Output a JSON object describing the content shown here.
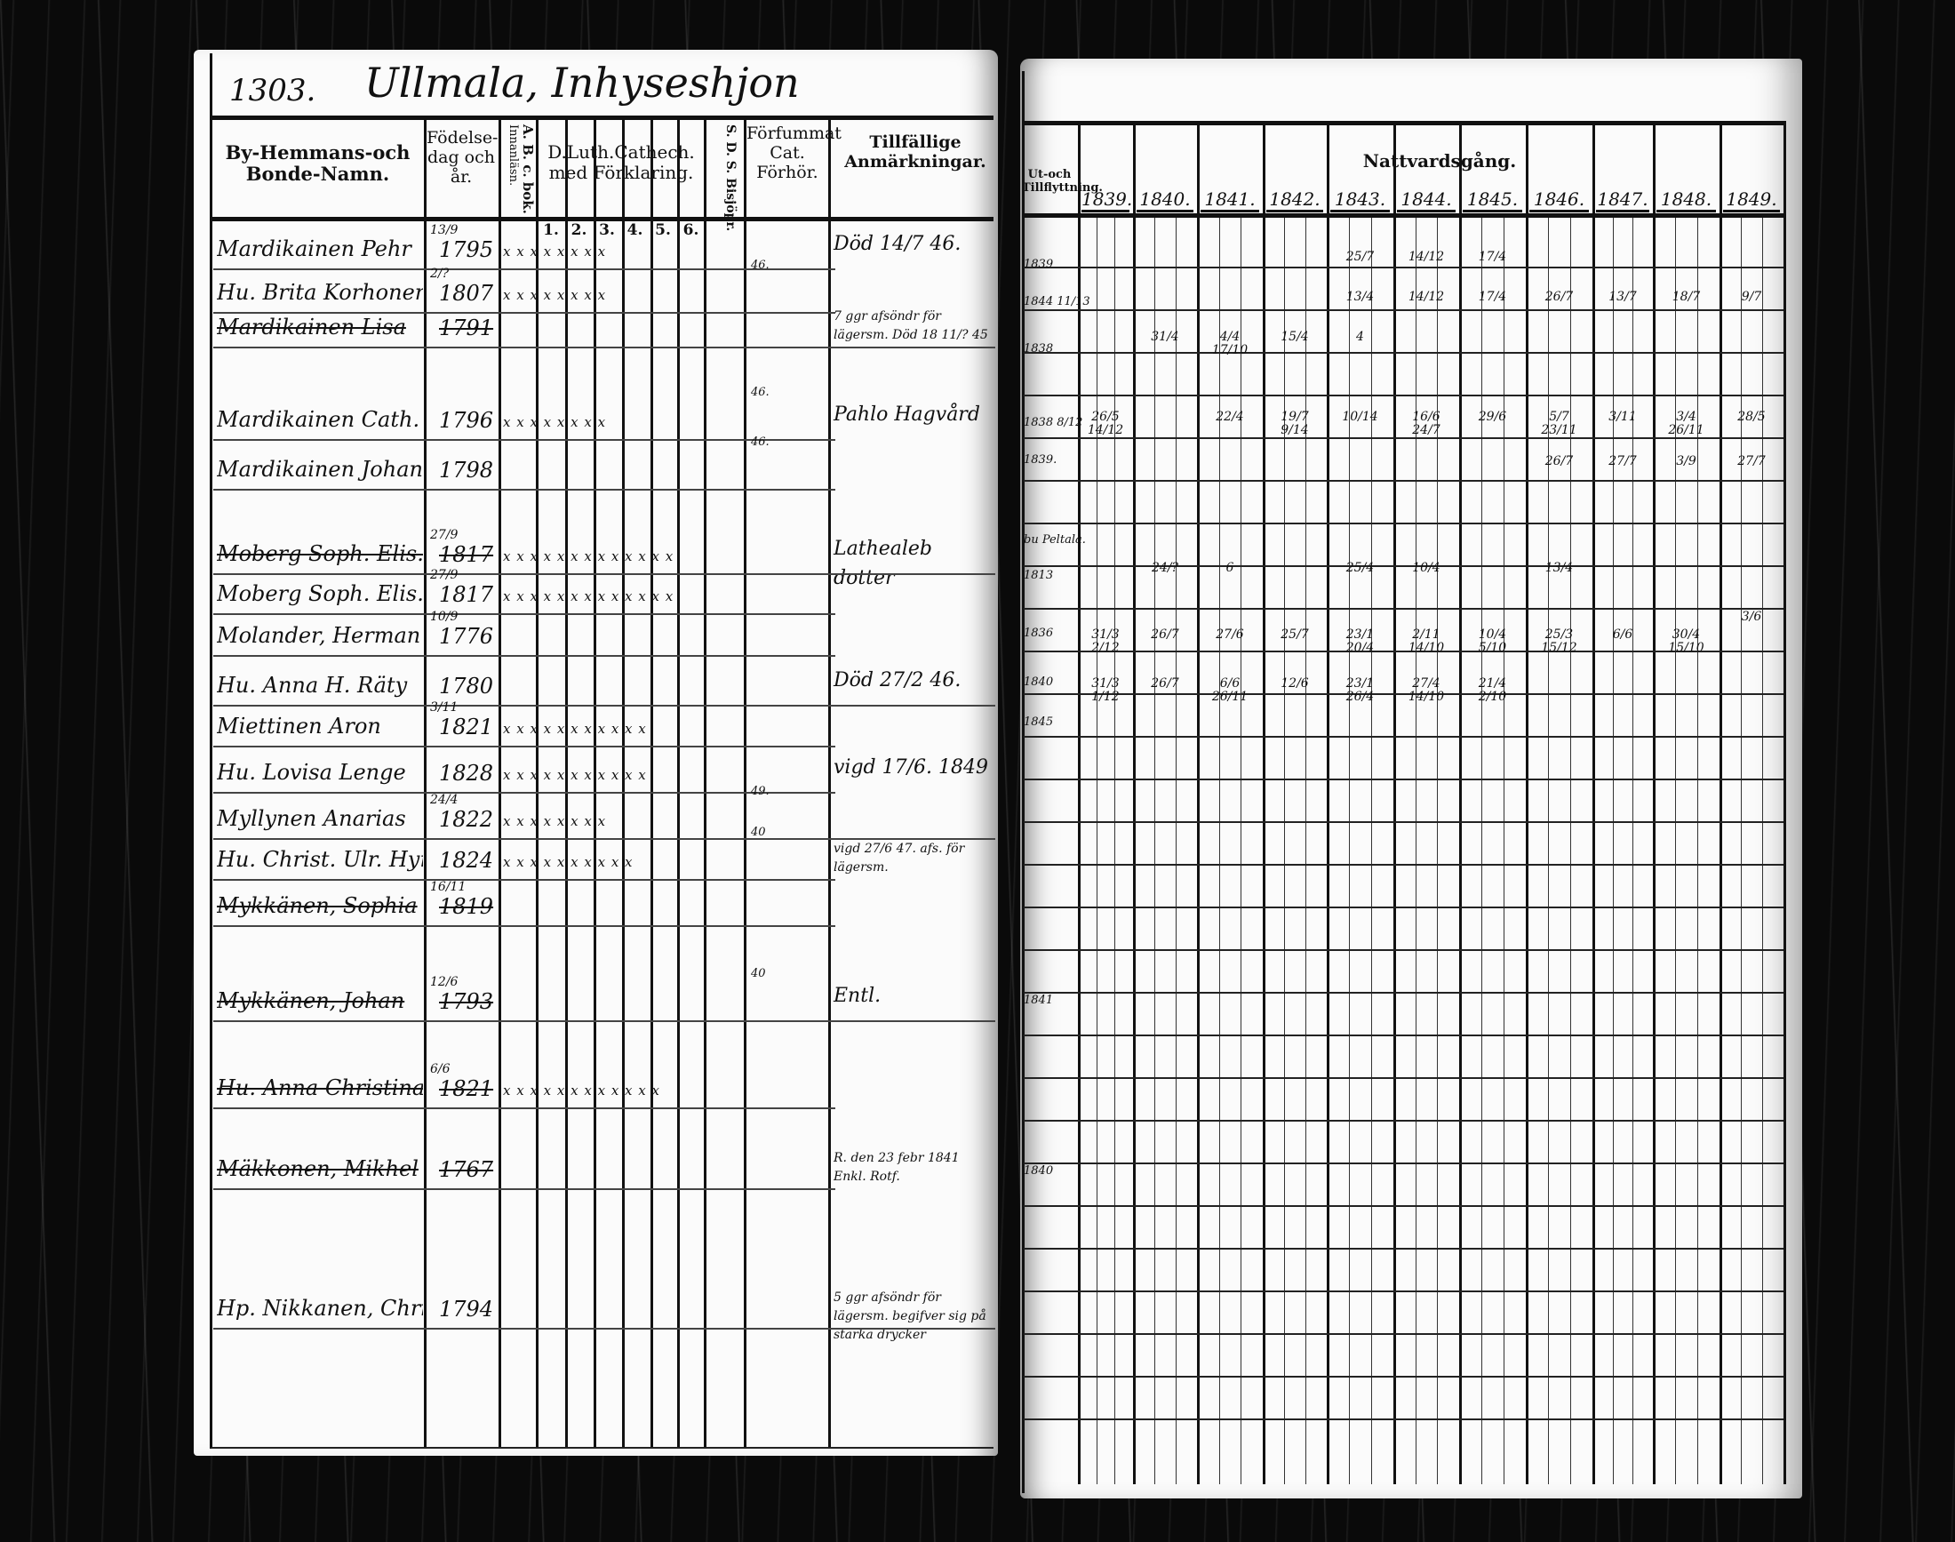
{
  "header": {
    "page_number": "1303.",
    "place_title": "Ullmala, Inhyseshjon"
  },
  "left_columns": {
    "name": "By-Hemmans-och Bonde-Namn.",
    "birth": "Födelse-dag och år.",
    "reading": "Innanläsn.",
    "abc_book": "A. B. c. bok.",
    "catechism": "D.Luth.Cathech. med Förklaring.",
    "catechism_parts": [
      "1.",
      "2.",
      "3.",
      "4.",
      "5.",
      "6."
    ],
    "bible": "S. D. S. Bisjöpr.",
    "missed": "Förfummat Cat. Förhör.",
    "remarks": "Tillfällige Anmärkningar."
  },
  "right_columns": {
    "moving": "Ut-och Tillflyttning.",
    "communion": "Nattvardsgång.",
    "years": [
      "1839.",
      "1840.",
      "1841.",
      "1842.",
      "1843.",
      "1844.",
      "1845.",
      "1846.",
      "1847.",
      "1848.",
      "1849."
    ]
  },
  "persons": [
    {
      "name": "Mardikainen Pehr",
      "birth_day": "13/9",
      "birth_year": "1795",
      "marks": "x x x x x x x x",
      "missed": "",
      "remark": "Död 14/7 46.",
      "struck": false
    },
    {
      "name": "Hu. Brita Korhonen",
      "birth_day": "2/?",
      "birth_year": "1807",
      "marks": "x x x x x x x x",
      "missed": "46.",
      "remark": "",
      "struck": false
    },
    {
      "name": "Mardikainen Lisa",
      "birth_day": "",
      "birth_year": "1791",
      "marks": "",
      "missed": "",
      "remark": "7 ggr afsöndr för lägersm. Död 18 11/? 45",
      "struck": true
    },
    {
      "name": "Mardikainen Cath.",
      "birth_day": "",
      "birth_year": "1796",
      "marks": "x x x x x x x x",
      "missed": "46.",
      "remark": "Pahlo Hagvård",
      "struck": false
    },
    {
      "name": "Mardikainen Johan",
      "birth_day": "",
      "birth_year": "1798",
      "marks": "",
      "missed": "46.",
      "remark": "",
      "struck": false
    },
    {
      "name": "Moberg Soph. Elis.",
      "birth_day": "27/9",
      "birth_year": "1817",
      "marks": "x x x x x x x x x x x x x",
      "missed": "",
      "remark": "Lathealeb dotter",
      "struck": true
    },
    {
      "name": "Moberg Soph. Elis.",
      "birth_day": "27/9",
      "birth_year": "1817",
      "marks": "x x x x x x x x x x x x x",
      "missed": "",
      "remark": "",
      "struck": false
    },
    {
      "name": "Molander, Herman",
      "birth_day": "10/9",
      "birth_year": "1776",
      "marks": "",
      "missed": "",
      "remark": "",
      "struck": false
    },
    {
      "name": "Hu. Anna H. Räty",
      "birth_day": "",
      "birth_year": "1780",
      "marks": "",
      "missed": "",
      "remark": "Död 27/2 46.",
      "struck": false
    },
    {
      "name": "Miettinen Aron",
      "birth_day": "3/11",
      "birth_year": "1821",
      "marks": "x x x x x x x x x x x",
      "missed": "",
      "remark": "",
      "struck": false
    },
    {
      "name": "Hu. Lovisa Lenge",
      "birth_day": "",
      "birth_year": "1828",
      "marks": "x x x x x x x x x x x",
      "missed": "",
      "remark": "vigd 17/6. 1849",
      "struck": false
    },
    {
      "name": "Myllynen Anarias",
      "birth_day": "24/4",
      "birth_year": "1822",
      "marks": "x x x x x x x x",
      "missed": "49.",
      "remark": "",
      "struck": false
    },
    {
      "name": "Hu. Christ. Ulr. Hyrynen",
      "birth_day": "",
      "birth_year": "1824",
      "marks": "x x x x x x x x x x",
      "missed": "40",
      "remark": "vigd 27/6 47. afs. för lägersm.",
      "struck": false
    },
    {
      "name": "Mykkänen, Sophia",
      "birth_day": "16/11",
      "birth_year": "1819",
      "marks": "",
      "missed": "",
      "remark": "",
      "struck": true
    },
    {
      "name": "Mykkänen, Johan",
      "birth_day": "12/6",
      "birth_year": "1793",
      "marks": "",
      "missed": "40",
      "remark": "Entl.",
      "struck": true
    },
    {
      "name": "Hu. Anna Christina",
      "birth_day": "6/6",
      "birth_year": "1821",
      "marks": "x x x x x x x x x x x x",
      "missed": "",
      "remark": "",
      "struck": true
    },
    {
      "name": "Mäkkonen, Mikhel",
      "birth_day": "",
      "birth_year": "1767",
      "marks": "",
      "missed": "",
      "remark": "R. den 23 febr 1841 Enkl. Rotf.",
      "struck": true
    },
    {
      "name": "Hp. Nikkanen, Christina",
      "birth_day": "",
      "birth_year": "1794",
      "marks": "",
      "missed": "",
      "remark": "5 ggr afsöndr för lägersm. begifver sig på starka drycker",
      "struck": false
    }
  ],
  "moving_notes": [
    "1839",
    "1844 11/13",
    "1838",
    "1838 8/12",
    "1839.",
    "bu Peltala.",
    "1813",
    "1836",
    "1840",
    "1845",
    "1841",
    "1840"
  ],
  "communion_rows": [
    {
      "entries": [
        {
          "year": "1843.",
          "date": "25/7"
        },
        {
          "year": "1844.",
          "date": "14/12"
        },
        {
          "year": "1845.",
          "date": "17/4"
        }
      ]
    },
    {
      "entries": [
        {
          "year": "1843.",
          "date": "13/4"
        },
        {
          "year": "1844.",
          "date": "14/12"
        },
        {
          "year": "1845.",
          "date": "17/4"
        },
        {
          "year": "1846.",
          "date": "26/7"
        },
        {
          "year": "1847.",
          "date": "13/7"
        },
        {
          "year": "1848.",
          "date": "18/7"
        },
        {
          "year": "1849.",
          "date": "9/7"
        }
      ]
    },
    {
      "entries": [
        {
          "year": "1840.",
          "date": "31/4"
        },
        {
          "year": "1841.",
          "date": "4/4 17/10"
        },
        {
          "year": "1842.",
          "date": "15/4"
        },
        {
          "year": "1843.",
          "date": "4"
        }
      ]
    },
    {
      "entries": [
        {
          "year": "1839.",
          "date": "26/5 14/12"
        },
        {
          "year": "1841.",
          "date": "22/4"
        },
        {
          "year": "1842.",
          "date": "19/7 9/14"
        },
        {
          "year": "1843.",
          "date": "10/14"
        },
        {
          "year": "1844.",
          "date": "16/6 24/7"
        },
        {
          "year": "1845.",
          "date": "29/6"
        },
        {
          "year": "1846.",
          "date": "5/7 23/11"
        },
        {
          "year": "1847.",
          "date": "3/11"
        },
        {
          "year": "1848.",
          "date": "3/4 26/11"
        },
        {
          "year": "1849.",
          "date": "28/5"
        }
      ]
    },
    {
      "entries": [
        {
          "year": "1846.",
          "date": "26/7"
        },
        {
          "year": "1847.",
          "date": "27/7"
        },
        {
          "year": "1848.",
          "date": "3/9"
        },
        {
          "year": "1849.",
          "date": "27/7"
        }
      ]
    },
    {
      "entries": [
        {
          "year": "1840.",
          "date": "24/?"
        },
        {
          "year": "1841.",
          "date": "6"
        },
        {
          "year": "1843.",
          "date": "25/4"
        },
        {
          "year": "1844.",
          "date": "10/4"
        },
        {
          "year": "1846.",
          "date": "13/4"
        }
      ]
    },
    {
      "entries": [
        {
          "year": "1849.",
          "date": "3/6"
        }
      ]
    },
    {
      "entries": [
        {
          "year": "1839.",
          "date": "31/3 2/12"
        },
        {
          "year": "1840.",
          "date": "26/7"
        },
        {
          "year": "1841.",
          "date": "27/6"
        },
        {
          "year": "1842.",
          "date": "25/7"
        },
        {
          "year": "1843.",
          "date": "23/1 20/4"
        },
        {
          "year": "1844.",
          "date": "2/11 14/10"
        },
        {
          "year": "1845.",
          "date": "10/4 5/10"
        },
        {
          "year": "1846.",
          "date": "25/3 15/12"
        },
        {
          "year": "1847.",
          "date": "6/6"
        },
        {
          "year": "1848.",
          "date": "30/4 15/10"
        }
      ]
    },
    {
      "entries": [
        {
          "year": "1839.",
          "date": "31/3 1/12"
        },
        {
          "year": "1840.",
          "date": "26/7"
        },
        {
          "year": "1841.",
          "date": "6/6 26/11"
        },
        {
          "year": "1842.",
          "date": "12/6"
        },
        {
          "year": "1843.",
          "date": "23/1 26/4"
        },
        {
          "year": "1844.",
          "date": "27/4 14/10"
        },
        {
          "year": "1845.",
          "date": "21/4 2/10"
        }
      ]
    }
  ]
}
